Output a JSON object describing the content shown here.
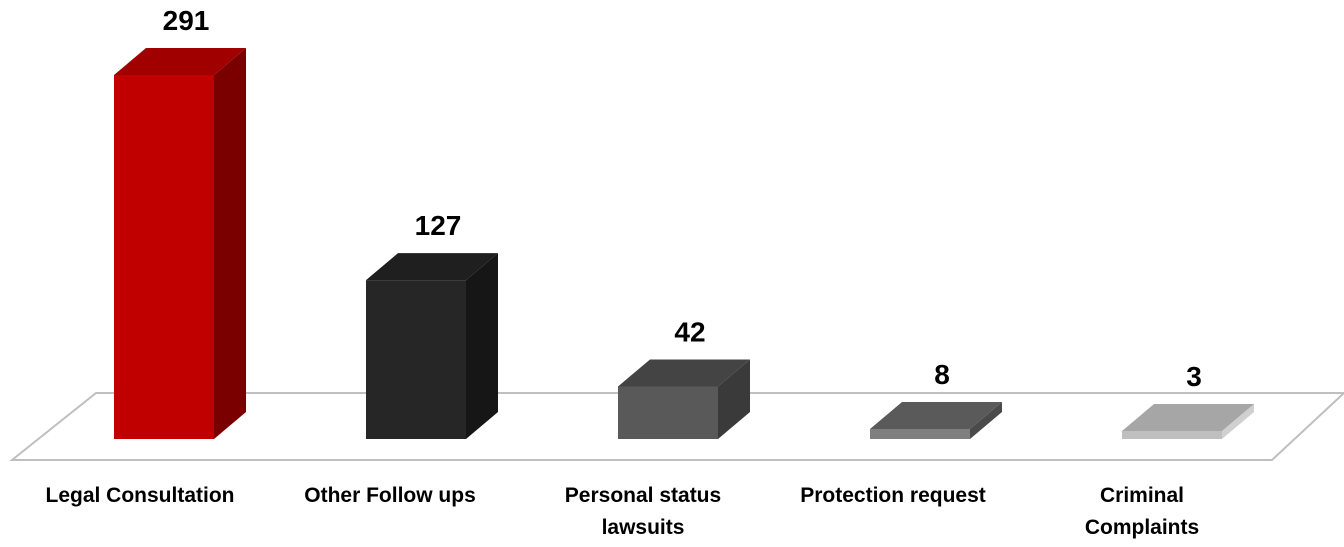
{
  "chart_data": {
    "type": "bar",
    "title": "",
    "xlabel": "",
    "ylabel": "",
    "categories": [
      "Legal Consultation",
      "Other Follow ups",
      "Personal status\nlawsuits",
      "Protection request",
      "Criminal\nComplaints"
    ],
    "values": [
      291,
      127,
      42,
      8,
      3
    ],
    "value_labels": [
      "291",
      "127",
      "42",
      "8",
      "3"
    ],
    "ylim": [
      0,
      291
    ],
    "grid": false,
    "legend": "none",
    "bar_style": "3d",
    "colors": {
      "front": [
        "#c00000",
        "#262626",
        "#595959",
        "#7f7f7f",
        "#bfbfbf"
      ],
      "top": [
        "#a00000",
        "#1f1f1f",
        "#444444",
        "#5a5a5a",
        "#a6a6a6"
      ],
      "side": [
        "#7a0000",
        "#161616",
        "#3a3a3a",
        "#4a4a4a",
        "#d0d0d0"
      ],
      "floor_stroke": "#bfbfbf"
    }
  }
}
